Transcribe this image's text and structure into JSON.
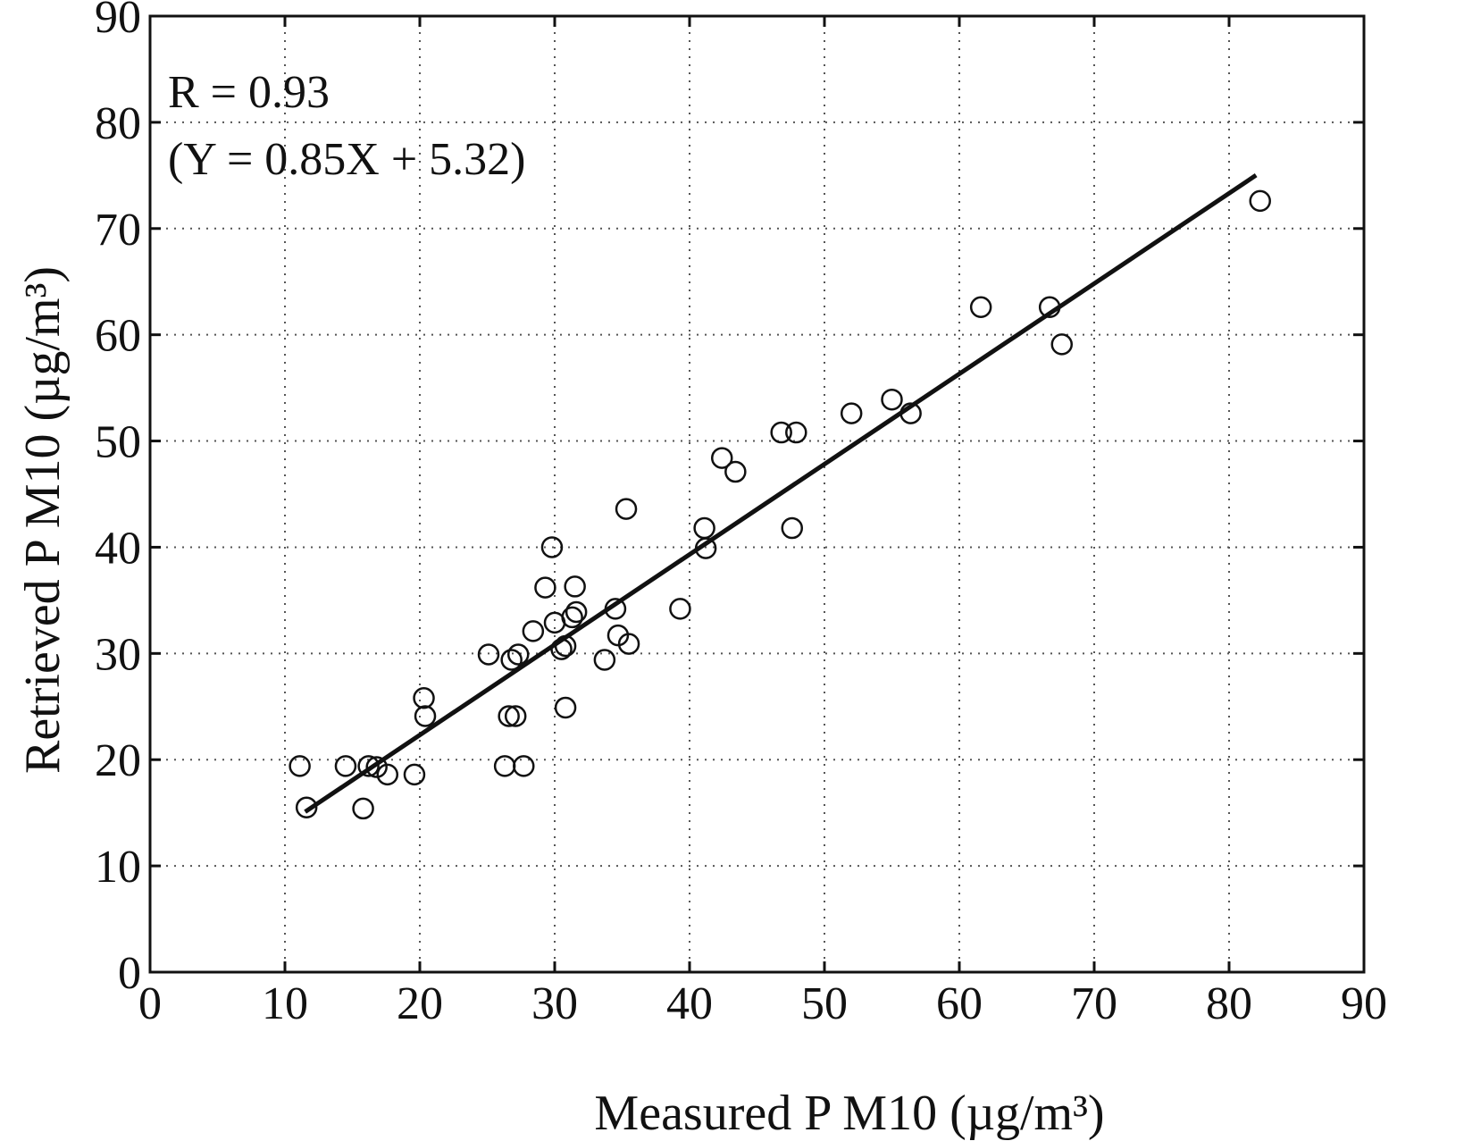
{
  "chart_data": {
    "type": "scatter",
    "xlabel": "Measured P M10 (µg/m³)",
    "ylabel": "Retrieved P M10 (µg/m³)",
    "xlim": [
      0,
      90
    ],
    "ylim": [
      0,
      90
    ],
    "xticks": [
      0,
      10,
      20,
      30,
      40,
      50,
      60,
      70,
      80,
      90
    ],
    "yticks": [
      0,
      10,
      20,
      30,
      40,
      50,
      60,
      70,
      80,
      90
    ],
    "grid": true,
    "annotations": [
      "R = 0.93",
      "(Y = 0.85X + 5.32)"
    ],
    "fit_line": {
      "slope": 0.85,
      "intercept": 5.32,
      "x_range": [
        11.5,
        82
      ]
    },
    "series": [
      {
        "marker": "open-circle",
        "points": [
          [
            11.1,
            19.4
          ],
          [
            11.6,
            15.5
          ],
          [
            14.5,
            19.4
          ],
          [
            15.8,
            15.4
          ],
          [
            16.2,
            19.4
          ],
          [
            16.8,
            19.3
          ],
          [
            17.6,
            18.6
          ],
          [
            19.6,
            18.6
          ],
          [
            20.3,
            25.8
          ],
          [
            20.4,
            24.1
          ],
          [
            25.1,
            29.9
          ],
          [
            26.3,
            19.4
          ],
          [
            26.6,
            24.1
          ],
          [
            26.8,
            29.4
          ],
          [
            27.1,
            24.1
          ],
          [
            27.3,
            29.9
          ],
          [
            27.7,
            19.4
          ],
          [
            28.4,
            32.1
          ],
          [
            29.3,
            36.2
          ],
          [
            29.8,
            40.0
          ],
          [
            30.0,
            32.9
          ],
          [
            30.5,
            30.4
          ],
          [
            30.8,
            24.9
          ],
          [
            30.8,
            30.7
          ],
          [
            31.3,
            33.4
          ],
          [
            31.5,
            36.3
          ],
          [
            31.6,
            33.9
          ],
          [
            33.7,
            29.4
          ],
          [
            34.5,
            34.2
          ],
          [
            34.7,
            31.7
          ],
          [
            35.3,
            43.6
          ],
          [
            35.5,
            30.9
          ],
          [
            39.3,
            34.2
          ],
          [
            41.1,
            41.8
          ],
          [
            41.2,
            39.9
          ],
          [
            42.4,
            48.4
          ],
          [
            43.4,
            47.1
          ],
          [
            46.8,
            50.8
          ],
          [
            47.6,
            41.8
          ],
          [
            47.9,
            50.8
          ],
          [
            52.0,
            52.6
          ],
          [
            55.0,
            53.9
          ],
          [
            56.4,
            52.6
          ],
          [
            61.6,
            62.6
          ],
          [
            66.7,
            62.6
          ],
          [
            67.6,
            59.1
          ],
          [
            82.3,
            72.6
          ]
        ]
      }
    ]
  }
}
